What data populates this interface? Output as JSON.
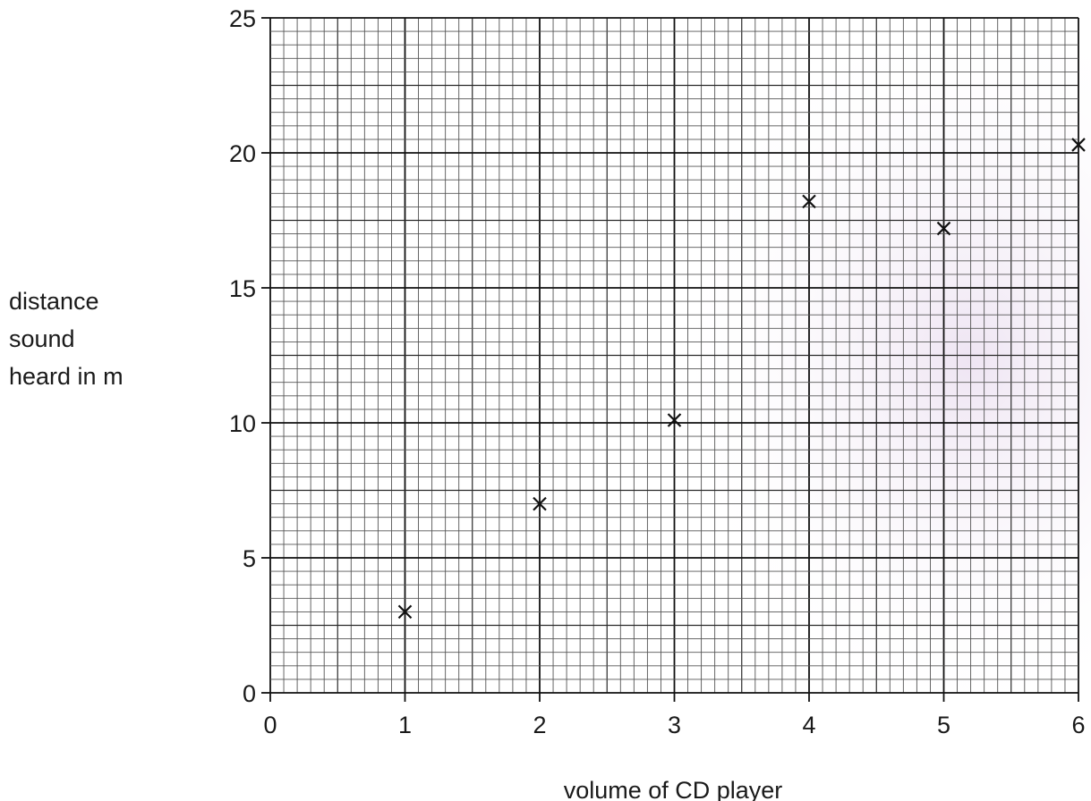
{
  "chart_data": {
    "type": "scatter",
    "title": "",
    "xlabel": "volume of CD player",
    "ylabel_lines": [
      "distance",
      "sound",
      "heard in m"
    ],
    "xlim": [
      0,
      6
    ],
    "ylim": [
      0,
      25
    ],
    "x_ticks": [
      0,
      1,
      2,
      3,
      4,
      5,
      6
    ],
    "y_ticks": [
      0,
      5,
      10,
      15,
      20,
      25
    ],
    "grid": true,
    "marker": "x",
    "colors": {
      "grid": "#222222",
      "marker": "#111111",
      "background": "#ffffff"
    },
    "points": [
      {
        "x": 1,
        "y": 3
      },
      {
        "x": 2,
        "y": 7
      },
      {
        "x": 3,
        "y": 10.1
      },
      {
        "x": 4,
        "y": 18.2
      },
      {
        "x": 5,
        "y": 17.2
      },
      {
        "x": 6,
        "y": 20.3
      }
    ]
  }
}
